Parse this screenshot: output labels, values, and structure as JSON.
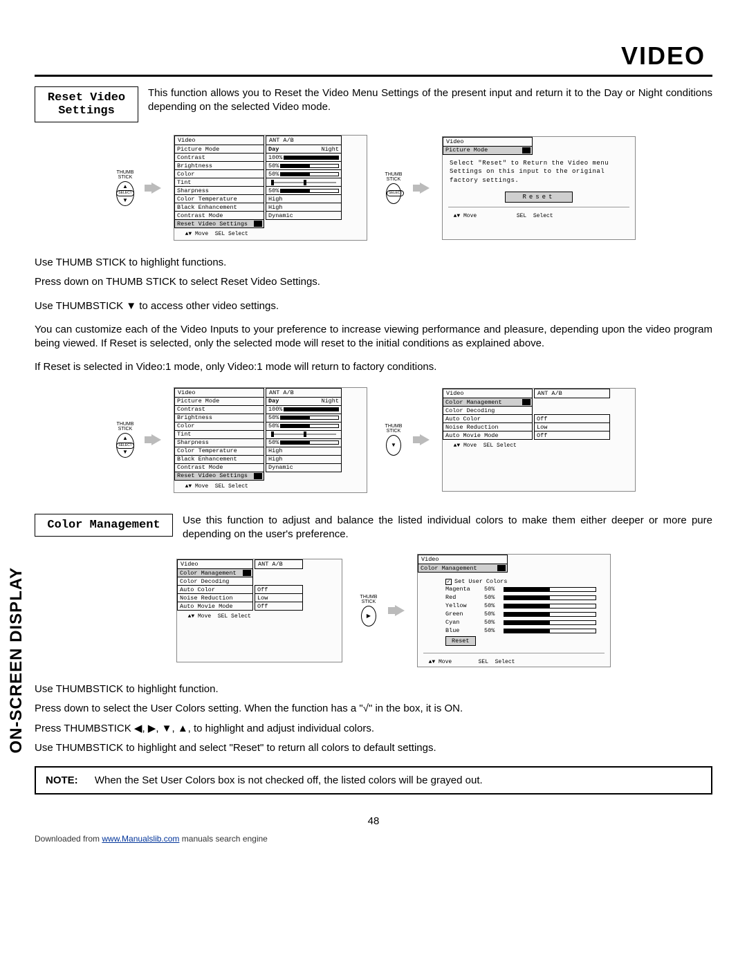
{
  "page": {
    "title_heading": "VIDEO",
    "sidebar_label": "ON-SCREEN DISPLAY",
    "page_number": "48",
    "download_prefix": "Downloaded from ",
    "download_link": "www.Manualslib.com",
    "download_suffix": " manuals search engine"
  },
  "section1": {
    "heading": "Reset Video\nSettings",
    "intro": "This function allows you to Reset the Video Menu Settings of the present input and return it to the Day or Night conditions depending on the selected Video mode.",
    "body1": "Use THUMB STICK to highlight functions.",
    "body2": "Press down on THUMB STICK to select Reset Video Settings.",
    "body3": "Use THUMBSTICK ▼ to access other video settings.",
    "body4": "You can customize each of the Video Inputs to your preference to increase viewing performance and pleasure, depending upon the video program being viewed. If Reset is selected, only the selected mode will reset to the initial conditions as explained above.",
    "body5": "If Reset is selected in Video:1 mode, only Video:1 mode will return to factory conditions."
  },
  "osd_video": {
    "title": "Video",
    "source": "ANT A/B",
    "rows": [
      {
        "label": "Picture Mode",
        "value_type": "daynight",
        "day": "Day",
        "night": "Night"
      },
      {
        "label": "Contrast",
        "value_type": "bar",
        "pct": "100%",
        "fill": 100
      },
      {
        "label": "Brightness",
        "value_type": "bar",
        "pct": "50%",
        "fill": 50
      },
      {
        "label": "Color",
        "value_type": "bar",
        "pct": "50%",
        "fill": 50
      },
      {
        "label": "Tint",
        "value_type": "slider",
        "pos": 50
      },
      {
        "label": "Sharpness",
        "value_type": "bar",
        "pct": "50%",
        "fill": 50
      },
      {
        "label": "Color Temperature",
        "value_type": "text",
        "text": "High"
      },
      {
        "label": "Black Enhancement",
        "value_type": "text",
        "text": "High"
      },
      {
        "label": "Contrast Mode",
        "value_type": "text",
        "text": "Dynamic"
      },
      {
        "label": "Reset Video Settings",
        "value_type": "hl"
      }
    ],
    "footer": "  ▲▼ Move  SEL Select"
  },
  "osd_reset": {
    "title": "Video",
    "sub": "Picture Mode",
    "body": "Select \"Reset\" to Return the Video menu Settings on this input to the original factory settings.",
    "button": "Reset",
    "footer": "  ▲▼ Move            SEL  Select"
  },
  "osd_color_mgmt": {
    "title": "Video",
    "source": "ANT A/B",
    "rows": [
      {
        "label": "Color Management",
        "value_type": "hl"
      },
      {
        "label": "Color Decoding",
        "value_type": "none"
      },
      {
        "label": "Auto Color",
        "value_type": "text",
        "text": "Off"
      },
      {
        "label": "Noise Reduction",
        "value_type": "text",
        "text": "Low"
      },
      {
        "label": "Auto Movie Mode",
        "value_type": "text",
        "text": "Off"
      }
    ],
    "footer": "  ▲▼ Move  SEL Select"
  },
  "section2": {
    "heading": "Color Management",
    "intro": "Use this function to adjust and balance the listed individual colors to make them either deeper or more pure depending on the user's preference.",
    "body1": "Use THUMBSTICK to highlight function.",
    "body2": "Press down to select the User Colors setting.  When the function has a \"√\" in the box, it is ON.",
    "body3": "Press THUMBSTICK ◀, ▶, ▼, ▲, to highlight and adjust individual colors.",
    "body4": "Use THUMBSTICK to highlight and select \"Reset\" to return all colors to default settings."
  },
  "osd_user_colors": {
    "title": "Video",
    "sub": "Color Management",
    "checkbox_label": "Set User Colors",
    "colors": [
      {
        "name": "Magenta",
        "pct": "50%",
        "fill": 50
      },
      {
        "name": "Red",
        "pct": "50%",
        "fill": 50
      },
      {
        "name": "Yellow",
        "pct": "50%",
        "fill": 50
      },
      {
        "name": "Green",
        "pct": "50%",
        "fill": 50
      },
      {
        "name": "Cyan",
        "pct": "50%",
        "fill": 50
      },
      {
        "name": "Blue",
        "pct": "50%",
        "fill": 50
      }
    ],
    "reset": "Reset",
    "footer": "  ▲▼ Move        SEL  Select"
  },
  "note": {
    "label": "NOTE:",
    "text": "When the Set User Colors box is not checked off, the listed colors will be grayed out."
  },
  "thumb": {
    "label": "THUMB\nSTICK",
    "select": "SELECT"
  },
  "colors": {
    "highlight": "#cfcfcf",
    "arrow": "#bbbbbb"
  }
}
